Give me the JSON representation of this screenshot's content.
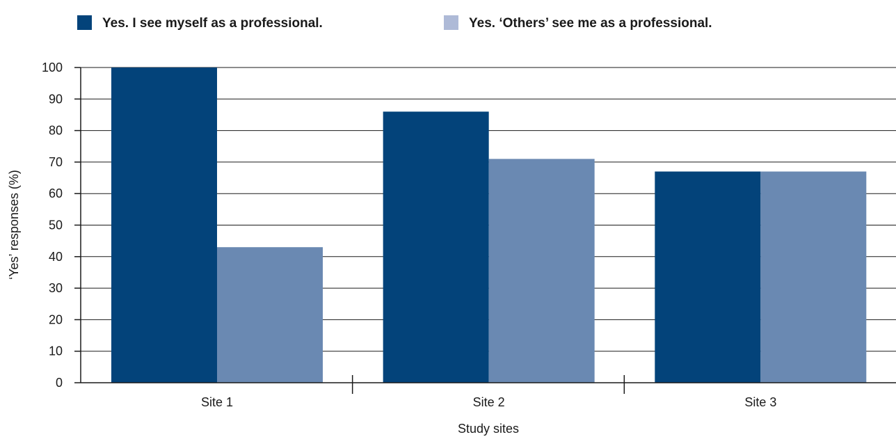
{
  "chart_data": {
    "type": "bar",
    "title": "",
    "xlabel": "Study sites",
    "ylabel": "‘Yes’ responses (%)",
    "categories": [
      "Site 1",
      "Site 2",
      "Site 3"
    ],
    "series": [
      {
        "name": "Yes. I see myself as a professional.",
        "values": [
          100,
          86,
          67
        ],
        "color": "#03437a"
      },
      {
        "name": "Yes. ‘Others’ see me as a professional.",
        "values": [
          43,
          71,
          67
        ],
        "color": "#6a89b2"
      }
    ],
    "legend_colors": [
      "#03437a",
      "#aebad7"
    ],
    "ylim": [
      0,
      100
    ],
    "yticks": [
      0,
      10,
      20,
      30,
      40,
      50,
      60,
      70,
      80,
      90,
      100
    ],
    "grid": true,
    "legend_position": "top-left"
  }
}
